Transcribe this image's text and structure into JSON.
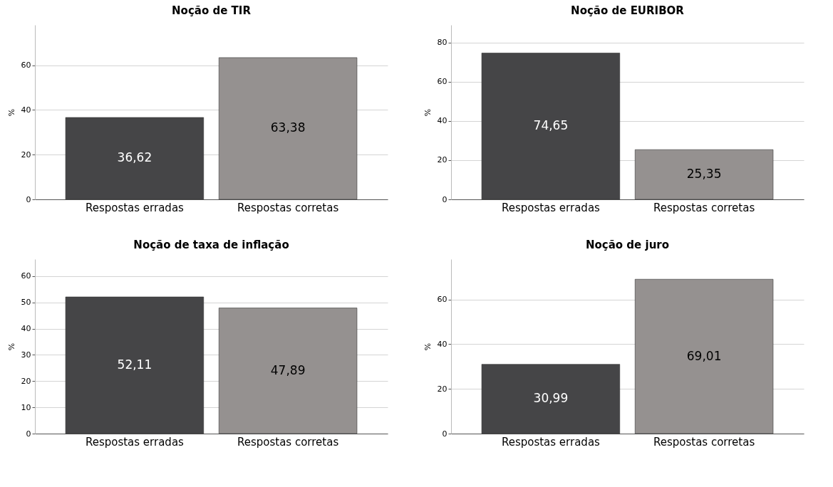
{
  "chart_data": [
    {
      "type": "bar",
      "title": "Noção de TIR",
      "ylabel": "%",
      "categories": [
        "Respostas erradas",
        "Respostas corretas"
      ],
      "values": [
        36.62,
        63.38
      ],
      "colors": [
        "#454547",
        "#959190"
      ],
      "value_labels": [
        "36,62",
        "63,38"
      ],
      "ylim": [
        0,
        78
      ],
      "yticks": [
        0,
        20,
        40,
        60
      ],
      "grid": "y"
    },
    {
      "type": "bar",
      "title": "Noção de EURIBOR",
      "ylabel": "%",
      "categories": [
        "Respostas erradas",
        "Respostas corretas"
      ],
      "values": [
        74.65,
        25.35
      ],
      "colors": [
        "#454547",
        "#959190"
      ],
      "value_labels": [
        "74,65",
        "25,35"
      ],
      "ylim": [
        0,
        89
      ],
      "yticks": [
        0,
        20,
        40,
        60,
        80
      ],
      "grid": "y"
    },
    {
      "type": "bar",
      "title": "Noção de taxa de inflação",
      "ylabel": "%",
      "categories": [
        "Respostas erradas",
        "Respostas corretas"
      ],
      "values": [
        52.11,
        47.89
      ],
      "colors": [
        "#454547",
        "#959190"
      ],
      "value_labels": [
        "52,11",
        "47,89"
      ],
      "ylim": [
        0,
        66.5
      ],
      "yticks": [
        0,
        10,
        20,
        30,
        40,
        50,
        60
      ],
      "grid": "y"
    },
    {
      "type": "bar",
      "title": "Noção de juro",
      "ylabel": "%",
      "categories": [
        "Respostas erradas",
        "Respostas corretas"
      ],
      "values": [
        30.99,
        69.01
      ],
      "colors": [
        "#454547",
        "#959190"
      ],
      "value_labels": [
        "30,99",
        "69,01"
      ],
      "ylim": [
        0,
        78
      ],
      "yticks": [
        0,
        20,
        40,
        60
      ],
      "grid": "y"
    }
  ]
}
